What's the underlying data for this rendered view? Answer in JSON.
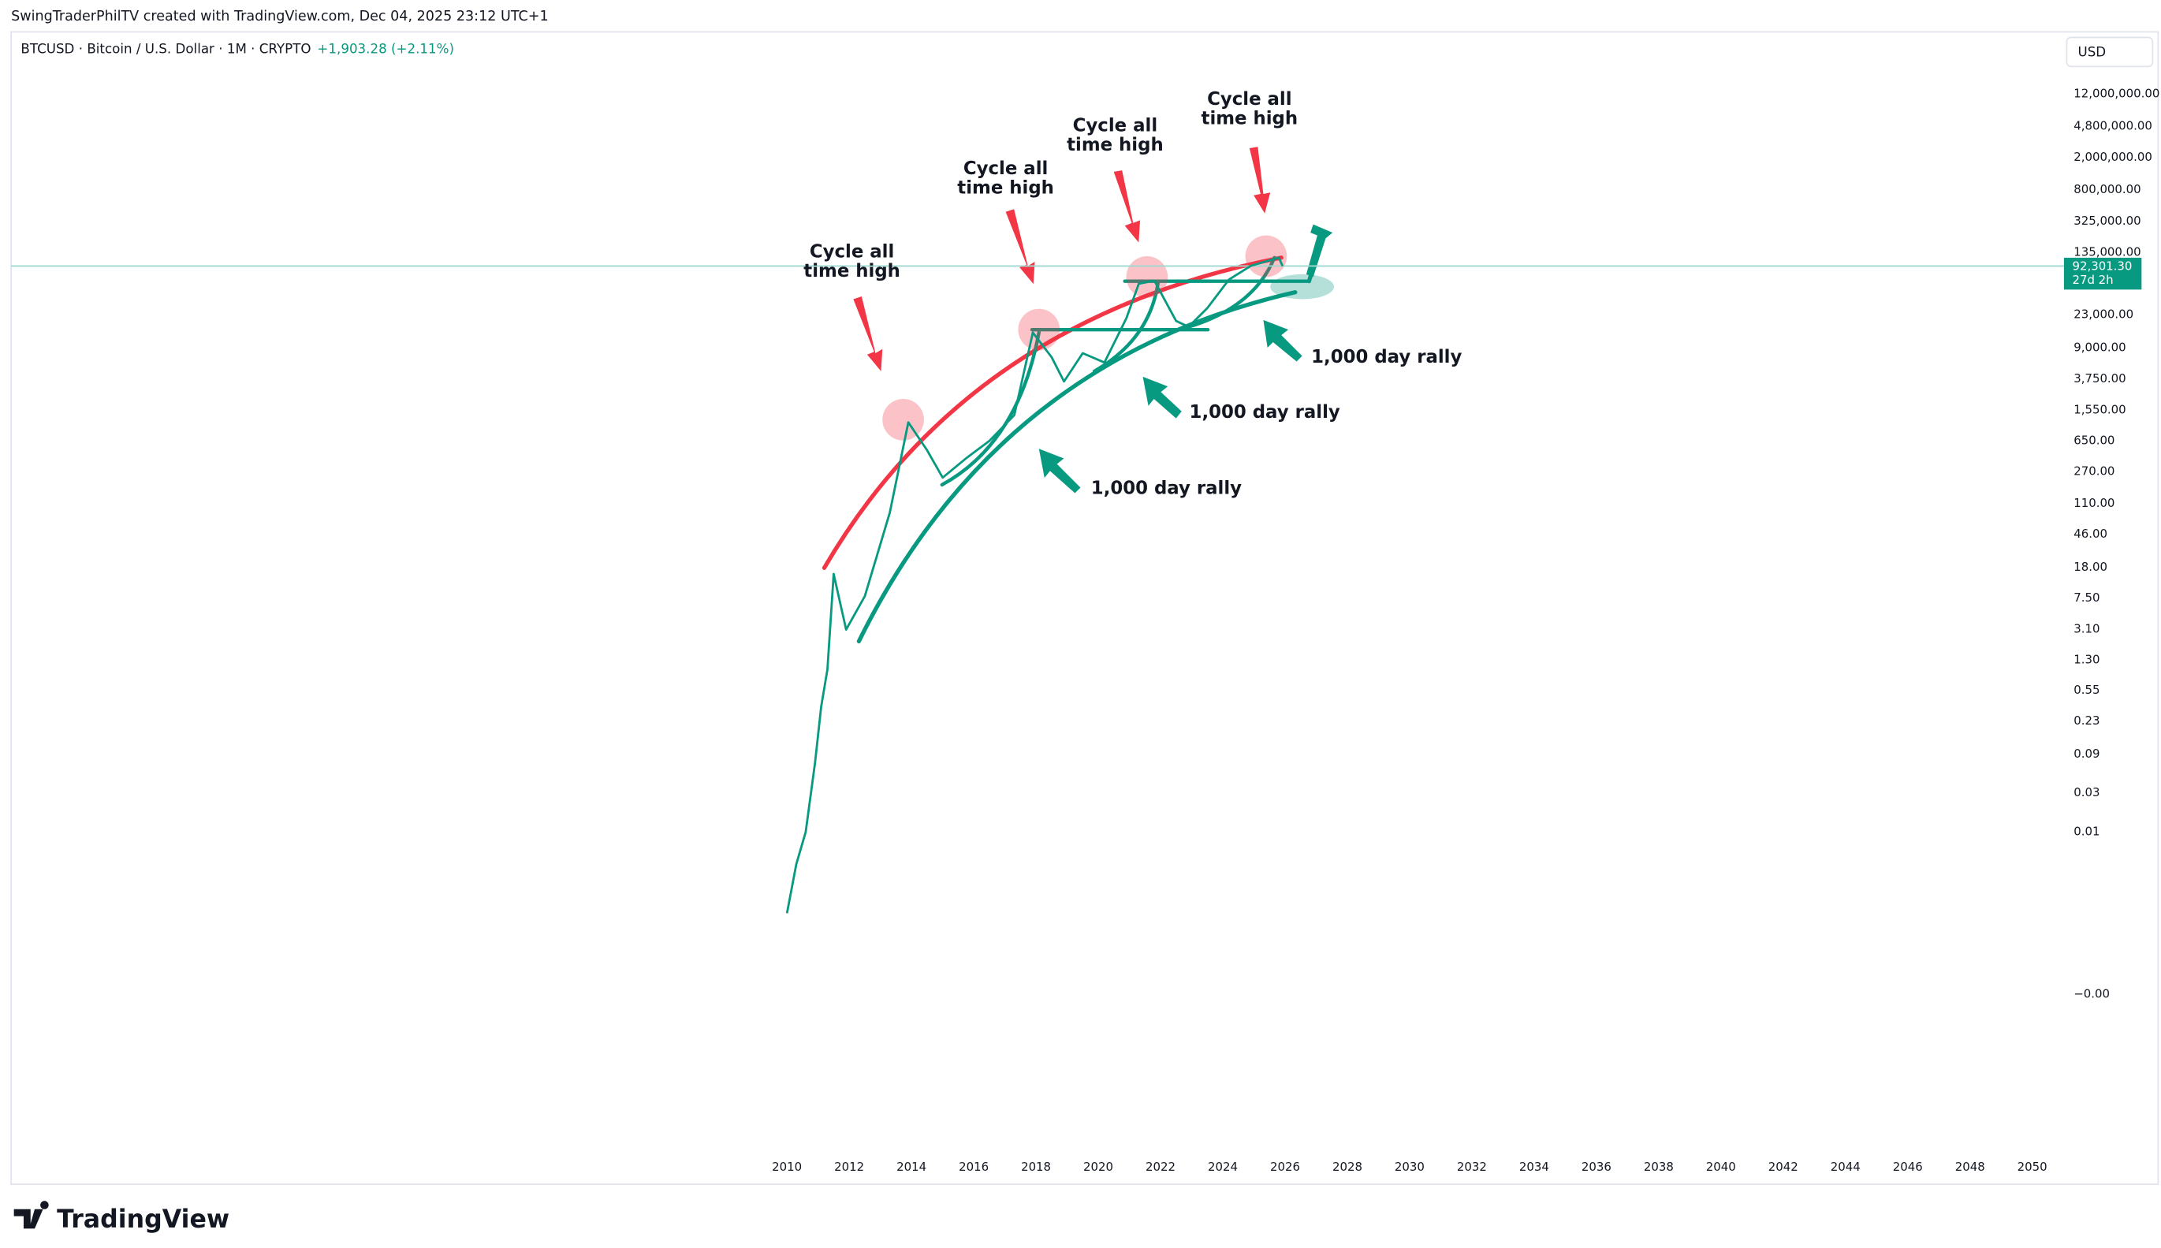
{
  "header": {
    "credit": "SwingTraderPhilTV created with TradingView.com, Dec 04, 2025 23:12 UTC+1",
    "symbol": "BTCUSD · Bitcoin / U.S. Dollar · 1M · CRYPTO",
    "change": "+1,903.28 (+2.11%)",
    "currency": "USD"
  },
  "chart_data": {
    "type": "line",
    "log_y": true,
    "grid": false,
    "color": "#089981",
    "x": [
      2010.0,
      2010.3,
      2010.6,
      2010.9,
      2011.1,
      2011.3,
      2011.5,
      2011.9,
      2012.5,
      2013.3,
      2013.9,
      2014.5,
      2015.0,
      2015.8,
      2016.5,
      2017.3,
      2017.9,
      2018.5,
      2018.9,
      2019.5,
      2020.2,
      2020.9,
      2021.3,
      2021.8,
      2022.5,
      2022.9,
      2023.5,
      2024.2,
      2024.9,
      2025.8,
      2025.92
    ],
    "values": [
      0.001,
      0.004,
      0.01,
      0.07,
      0.35,
      1.0,
      15,
      3.1,
      8,
      85,
      1100,
      500,
      230,
      410,
      650,
      1350,
      14000,
      7000,
      3500,
      7800,
      6000,
      21000,
      56000,
      61000,
      19500,
      16500,
      28000,
      63000,
      93000,
      117000,
      92301.3
    ],
    "xlim": [
      1985.08,
      2050.93
    ],
    "ylim": [
      5e-07,
      65000000
    ],
    "xticks": [
      2010,
      2012,
      2014,
      2016,
      2018,
      2020,
      2022,
      2024,
      2026,
      2028,
      2030,
      2032,
      2034,
      2036,
      2038,
      2040,
      2042,
      2044,
      2046,
      2048,
      2050
    ],
    "yticks": [
      {
        "value": 12000000,
        "label": "12,000,000.00"
      },
      {
        "value": 4800000,
        "label": "4,800,000.00"
      },
      {
        "value": 2000000,
        "label": "2,000,000.00"
      },
      {
        "value": 800000,
        "label": "800,000.00"
      },
      {
        "value": 325000,
        "label": "325,000.00"
      },
      {
        "value": 135000,
        "label": "135,000.00"
      },
      {
        "value": 23000,
        "label": "23,000.00"
      },
      {
        "value": 9000,
        "label": "9,000.00"
      },
      {
        "value": 3750,
        "label": "3,750.00"
      },
      {
        "value": 1550,
        "label": "1,550.00"
      },
      {
        "value": 650,
        "label": "650.00"
      },
      {
        "value": 270,
        "label": "270.00"
      },
      {
        "value": 110,
        "label": "110.00"
      },
      {
        "value": 46,
        "label": "46.00"
      },
      {
        "value": 18,
        "label": "18.00"
      },
      {
        "value": 7.5,
        "label": "7.50"
      },
      {
        "value": 3.1,
        "label": "3.10"
      },
      {
        "value": 1.3,
        "label": "1.30"
      },
      {
        "value": 0.55,
        "label": "0.55"
      },
      {
        "value": 0.23,
        "label": "0.23"
      },
      {
        "value": 0.09,
        "label": "0.09"
      },
      {
        "value": 0.03,
        "label": "0.03"
      },
      {
        "value": 0.01,
        "label": "0.01"
      },
      {
        "value": 0.0001,
        "label": "−0.00"
      }
    ],
    "current_price": {
      "value": 92301.3,
      "label": "92,301.30"
    },
    "countdown": "27d 2h",
    "annotations": [
      {
        "lines": [
          "Cycle all",
          "time high"
        ]
      },
      {
        "lines": [
          "Cycle all",
          "time high"
        ]
      },
      {
        "lines": [
          "Cycle all",
          "time high"
        ]
      },
      {
        "lines": [
          "Cycle all",
          "time high"
        ]
      },
      {
        "lines": [
          "1,000 day rally"
        ]
      },
      {
        "lines": [
          "1,000 day rally"
        ]
      },
      {
        "lines": [
          "1,000 day rally"
        ]
      }
    ]
  },
  "footer": {
    "brand": "TradingView"
  }
}
